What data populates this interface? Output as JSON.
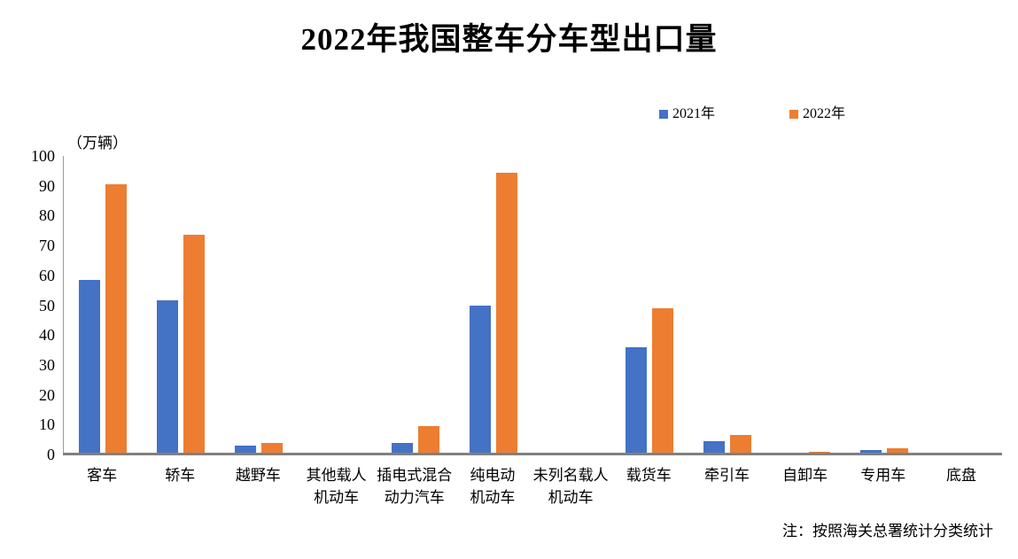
{
  "title": "2022年我国整车分车型出口量",
  "y_axis_unit": "（万辆）",
  "note": "注：按照海关总署统计分类统计",
  "colors": {
    "series_2021": "#4472C4",
    "series_2022": "#ED7D31",
    "axis_line": "#9a9a9a",
    "baseline": "#808080"
  },
  "legend": [
    {
      "label": "2021年",
      "color": "#4472C4"
    },
    {
      "label": "2022年",
      "color": "#ED7D31"
    }
  ],
  "chart_data": {
    "type": "bar",
    "title": "2022年我国整车分车型出口量",
    "ylabel": "（万辆）",
    "xlabel": "",
    "ylim": [
      0,
      100
    ],
    "yticks": [
      0,
      10,
      20,
      30,
      40,
      50,
      60,
      70,
      80,
      90,
      100
    ],
    "grid": false,
    "legend_position": "top-right",
    "annotation": "注：按照海关总署统计分类统计",
    "categories": [
      "客车",
      "轿车",
      "越野车",
      "其他载人机动车",
      "插电式混合动力汽车",
      "纯电动机动车",
      "未列名载人机动车",
      "载货车",
      "牵引车",
      "自卸车",
      "专用车",
      "底盘"
    ],
    "category_labels_display": [
      [
        "客车"
      ],
      [
        "轿车"
      ],
      [
        "越野车"
      ],
      [
        "其他载人",
        "机动车"
      ],
      [
        "插电式混合",
        "动力汽车"
      ],
      [
        "纯电动",
        "机动车"
      ],
      [
        "未列名载人",
        "机动车"
      ],
      [
        "载货车"
      ],
      [
        "牵引车"
      ],
      [
        "自卸车"
      ],
      [
        "专用车"
      ],
      [
        "底盘"
      ]
    ],
    "series": [
      {
        "name": "2021年",
        "color": "#4472C4",
        "values": [
          58.5,
          51.5,
          3.0,
          0,
          4.0,
          50.0,
          0.5,
          36.0,
          4.5,
          0.5,
          1.6,
          0.6
        ]
      },
      {
        "name": "2022年",
        "color": "#ED7D31",
        "values": [
          90.5,
          73.5,
          4.0,
          0,
          9.5,
          94.5,
          0,
          49.0,
          6.5,
          0.8,
          2.2,
          0.5
        ]
      }
    ]
  }
}
